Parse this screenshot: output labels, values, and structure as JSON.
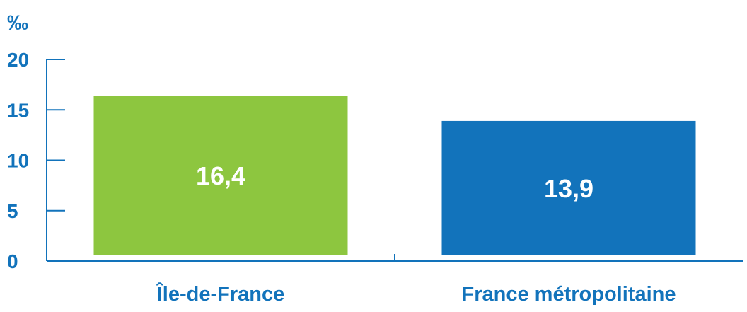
{
  "chart_data": {
    "type": "bar",
    "unit": "‰",
    "categories": [
      "Île-de-France",
      "France métropolitaine"
    ],
    "values": [
      16.4,
      13.9
    ],
    "value_labels": [
      "16,4",
      "13,9"
    ],
    "ylim": [
      0,
      20
    ],
    "yticks": [
      0,
      5,
      10,
      15,
      20
    ],
    "ytick_labels": [
      "0",
      "5",
      "10",
      "15",
      "20"
    ],
    "bar_colors": [
      "#8dc63f",
      "#1273bb"
    ],
    "axis_color": "#1273bb",
    "text_color": "#1273bb",
    "grid": false,
    "legend": "none"
  }
}
